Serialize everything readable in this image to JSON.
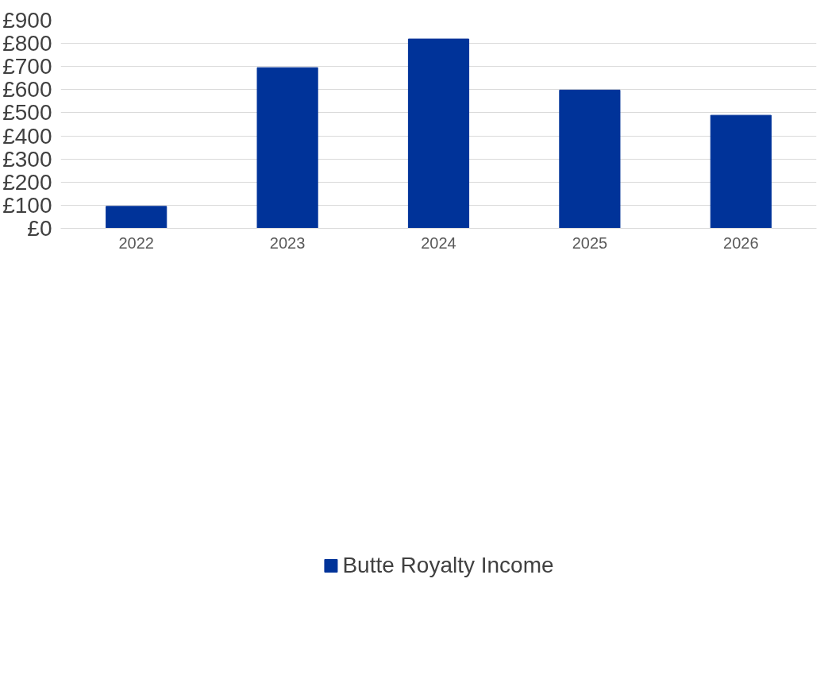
{
  "chart_data": {
    "type": "bar",
    "categories": [
      "2022",
      "2023",
      "2024",
      "2025",
      "2026"
    ],
    "series": [
      {
        "name": "Butte Royalty Income",
        "color": "#003399",
        "values": [
          95,
          695,
          819,
          598,
          489
        ]
      }
    ],
    "ylim": [
      0,
      900
    ],
    "yticks": [
      {
        "value": 0,
        "label": "£0"
      },
      {
        "value": 100,
        "label": "£100"
      },
      {
        "value": 200,
        "label": "£200"
      },
      {
        "value": 300,
        "label": "£300"
      },
      {
        "value": 400,
        "label": "£400"
      },
      {
        "value": 500,
        "label": "£500"
      },
      {
        "value": 600,
        "label": "£600"
      },
      {
        "value": 700,
        "label": "£700"
      },
      {
        "value": 800,
        "label": "£800"
      },
      {
        "value": 900,
        "label": "£900"
      }
    ],
    "grid": "y",
    "legend": "bottom"
  }
}
